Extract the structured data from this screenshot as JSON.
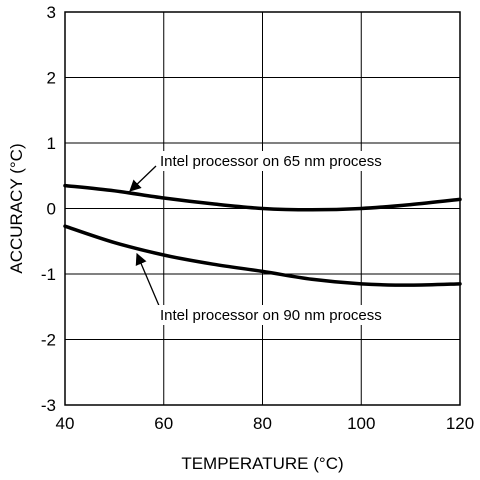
{
  "chart_data": {
    "type": "line",
    "xlabel": "TEMPERATURE (°C)",
    "ylabel": "ACCURACY (°C)",
    "xlim": [
      40,
      120
    ],
    "ylim": [
      -3,
      3
    ],
    "x_ticks": [
      40,
      60,
      80,
      100,
      120
    ],
    "y_ticks": [
      -3,
      -2,
      -1,
      0,
      1,
      2,
      3
    ],
    "grid": true,
    "series": [
      {
        "x": [
          40,
          50,
          60,
          70,
          80,
          90,
          100,
          110,
          120
        ],
        "y": [
          0.35,
          0.27,
          0.16,
          0.07,
          0.0,
          -0.02,
          0.0,
          0.06,
          0.14
        ]
      },
      {
        "x": [
          40,
          50,
          60,
          70,
          80,
          90,
          100,
          110,
          120
        ],
        "y": [
          -0.27,
          -0.52,
          -0.71,
          -0.85,
          -0.96,
          -1.08,
          -1.15,
          -1.17,
          -1.15
        ]
      }
    ],
    "annotations": [
      {
        "text": "Intel processor on 65 nm process",
        "x": 52,
        "y": 0.25
      },
      {
        "text": "Intel processor on 90 nm process",
        "x": 55,
        "y": -0.65
      }
    ]
  }
}
